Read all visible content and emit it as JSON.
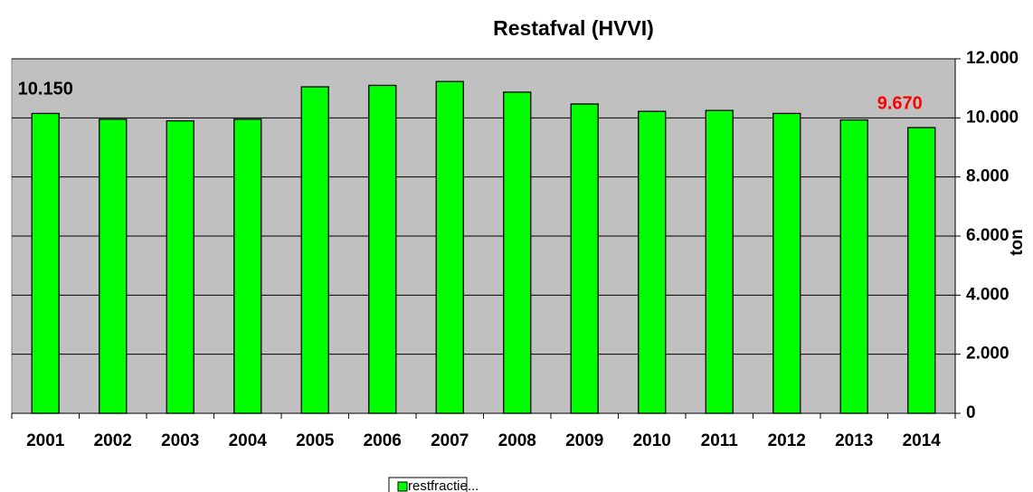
{
  "chart_data": {
    "type": "bar",
    "title": "Restafval (HVVI)",
    "categories": [
      "2001",
      "2002",
      "2003",
      "2004",
      "2005",
      "2006",
      "2007",
      "2008",
      "2009",
      "2010",
      "2011",
      "2012",
      "2013",
      "2014"
    ],
    "series": [
      {
        "name": "restfractie...",
        "color": "#00ff00",
        "values": [
          10150,
          9950,
          9900,
          9950,
          11050,
          11100,
          11230,
          10870,
          10470,
          10220,
          10250,
          10150,
          9930,
          9670
        ],
        "value_labels": [
          "10.150",
          null,
          null,
          null,
          null,
          null,
          null,
          null,
          null,
          null,
          null,
          null,
          null,
          "9.670"
        ],
        "value_label_colors": [
          "#000000",
          null,
          null,
          null,
          null,
          null,
          null,
          null,
          null,
          null,
          null,
          null,
          null,
          "#ff0000"
        ]
      }
    ],
    "y_label": "ton",
    "ylim": [
      0,
      12000
    ],
    "yticks": [
      0,
      {
        "value": 2000,
        "label": "2.000"
      },
      {
        "value": 4000,
        "label": "4.000"
      },
      {
        "value": 6000,
        "label": "6.000"
      },
      {
        "value": 8000,
        "label": "8.000"
      },
      {
        "value": 10000,
        "label": "10.000"
      },
      {
        "value": 12000,
        "label": "12.000"
      }
    ],
    "grid": true,
    "y_axis_side": "right",
    "plot_background": "#c0c0c0",
    "legend": "bottom"
  }
}
